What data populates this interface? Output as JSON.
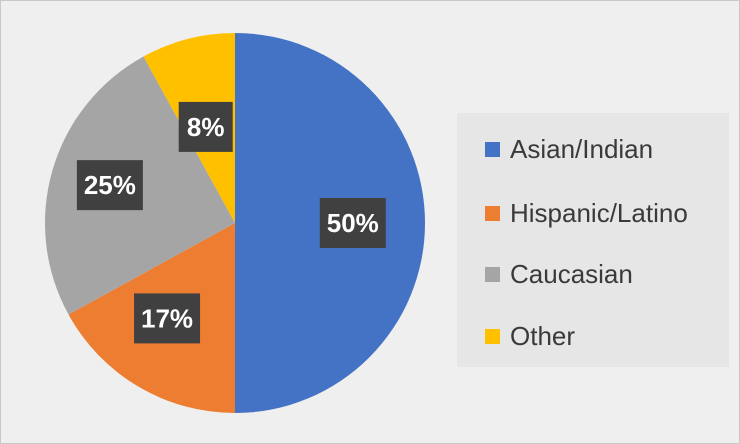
{
  "chart_data": {
    "type": "pie",
    "title": "",
    "legend_position": "right",
    "series": [
      {
        "name": "Asian/Indian",
        "value": 50,
        "label": "50%",
        "color": "#4472c4"
      },
      {
        "name": "Hispanic/Latino",
        "value": 17,
        "label": "17%",
        "color": "#ed7d31"
      },
      {
        "name": "Caucasian",
        "value": 25,
        "label": "25%",
        "color": "#a5a5a5"
      },
      {
        "name": "Other",
        "value": 8,
        "label": "8%",
        "color": "#ffc000"
      }
    ]
  }
}
